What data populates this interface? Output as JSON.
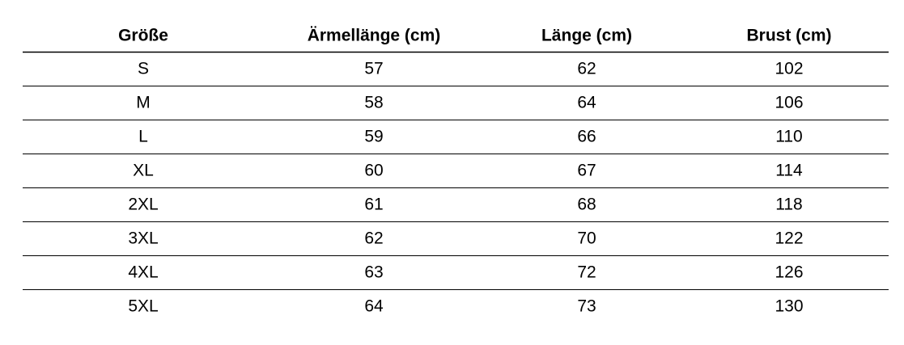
{
  "table": {
    "header": [
      "Größe",
      "Ärmellänge (cm)",
      "Länge (cm)",
      "Brust (cm)"
    ],
    "rows": [
      [
        "S",
        "57",
        "62",
        "102"
      ],
      [
        "M",
        "58",
        "64",
        "106"
      ],
      [
        "L",
        "59",
        "66",
        "110"
      ],
      [
        "XL",
        "60",
        "67",
        "114"
      ],
      [
        "2XL",
        "61",
        "68",
        "118"
      ],
      [
        "3XL",
        "62",
        "70",
        "122"
      ],
      [
        "4XL",
        "63",
        "72",
        "126"
      ],
      [
        "5XL",
        "64",
        "73",
        "130"
      ]
    ]
  }
}
